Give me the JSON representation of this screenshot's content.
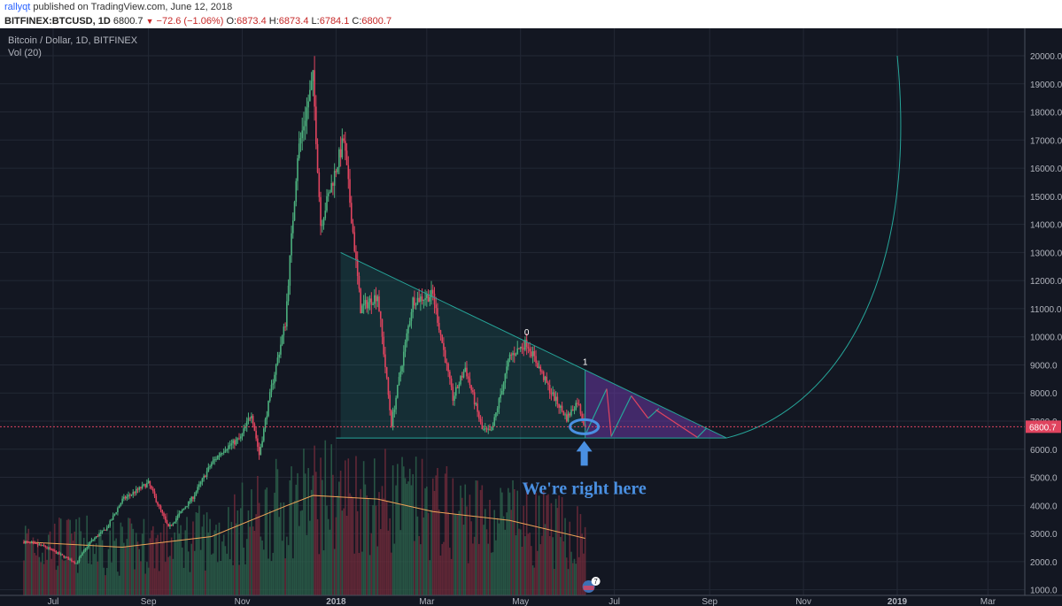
{
  "header": {
    "user": "rallyqt",
    "published": " published on TradingView.com, June 12, 2018",
    "symbol": "BITFINEX:BTCUSD, 1D",
    "last": "6800.7",
    "change_arrow": "▼",
    "change": "−72.6 (−1.06%)",
    "o_label": "O:",
    "o_value": "6873.4",
    "h_label": "H:",
    "h_value": "6873.4",
    "l_label": "L:",
    "l_value": "6784.1",
    "c_label": "C:",
    "c_value": "6800.7"
  },
  "chart_data": {
    "type": "candlestick",
    "title": "Bitcoin / Dollar, 1D, BITFINEX",
    "subtitle": "Vol (20)",
    "x_ticks": [
      "Jul",
      "Sep",
      "Nov",
      "2018",
      "Mar",
      "May",
      "Jul",
      "Sep",
      "Nov",
      "2019",
      "Mar"
    ],
    "y_ticks": [
      "20000.0",
      "19000.0",
      "18000.0",
      "17000.0",
      "16000.0",
      "15000.0",
      "14000.0",
      "13000.0",
      "12000.0",
      "11000.0",
      "10000.0",
      "9000.0",
      "8000.0",
      "7000.0",
      "6000.0",
      "5000.0",
      "4000.0",
      "3000.0",
      "2000.0",
      "1000.0"
    ],
    "ylim": [
      850,
      20900
    ],
    "last_price": 6800.7,
    "last_price_label": "6800.7",
    "price_path": [
      [
        "2017-06-12",
        2700
      ],
      [
        "2017-06-25",
        2550
      ],
      [
        "2017-07-16",
        1950
      ],
      [
        "2017-07-25",
        2700
      ],
      [
        "2017-08-05",
        3200
      ],
      [
        "2017-08-15",
        4200
      ],
      [
        "2017-09-01",
        4800
      ],
      [
        "2017-09-14",
        3200
      ],
      [
        "2017-09-30",
        4300
      ],
      [
        "2017-10-12",
        5500
      ],
      [
        "2017-10-20",
        6000
      ],
      [
        "2017-10-31",
        6400
      ],
      [
        "2017-11-07",
        7300
      ],
      [
        "2017-11-12",
        5800
      ],
      [
        "2017-11-20",
        8200
      ],
      [
        "2017-11-29",
        10500
      ],
      [
        "2017-12-07",
        16500
      ],
      [
        "2017-12-17",
        19200
      ],
      [
        "2017-12-22",
        14000
      ],
      [
        "2018-01-06",
        17000
      ],
      [
        "2018-01-17",
        11000
      ],
      [
        "2018-01-28",
        11500
      ],
      [
        "2018-02-06",
        6900
      ],
      [
        "2018-02-20",
        11300
      ],
      [
        "2018-03-05",
        11500
      ],
      [
        "2018-03-18",
        7800
      ],
      [
        "2018-03-26",
        8900
      ],
      [
        "2018-04-06",
        6700
      ],
      [
        "2018-04-12",
        6600
      ],
      [
        "2018-04-24",
        9300
      ],
      [
        "2018-05-05",
        9800
      ],
      [
        "2018-05-20",
        8100
      ],
      [
        "2018-05-31",
        7100
      ],
      [
        "2018-06-07",
        7700
      ],
      [
        "2018-06-12",
        6800
      ]
    ],
    "volume_ylim": [
      0,
      3000
    ],
    "volume_ma": [
      [
        "2017-06-12",
        1500
      ],
      [
        "2017-08-15",
        1350
      ],
      [
        "2017-10-12",
        1650
      ],
      [
        "2017-11-29",
        2500
      ],
      [
        "2017-12-17",
        2800
      ],
      [
        "2018-01-28",
        2700
      ],
      [
        "2018-03-05",
        2350
      ],
      [
        "2018-04-24",
        2100
      ],
      [
        "2018-06-12",
        1600
      ]
    ],
    "annotations": {
      "triangle_top": [
        [
          "2018-01-04",
          13000
        ],
        [
          "2018-09-12",
          6400
        ]
      ],
      "triangle_base": [
        [
          "2018-01-01",
          6400
        ],
        [
          "2018-09-12",
          6400
        ]
      ],
      "label_0": "0",
      "label_1": "1",
      "arrow_text": "We're right here",
      "flag_badge": "7"
    }
  }
}
